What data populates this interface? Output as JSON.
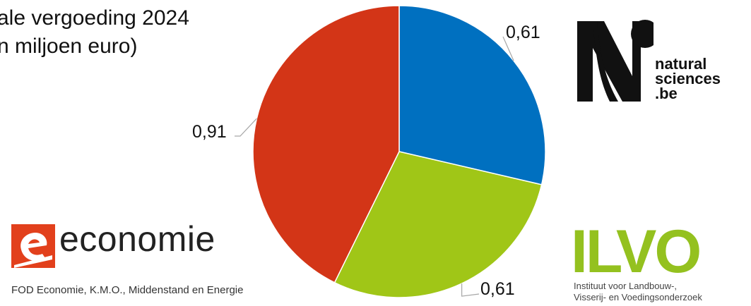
{
  "title_line1": "ale vergoeding 2024",
  "title_line2": "n miljoen euro)",
  "chart_data": {
    "type": "pie",
    "values": [
      0.61,
      0.61,
      0.91
    ],
    "labels": [
      "0,61",
      "0,61",
      "0,91"
    ],
    "colors": [
      "#0070C0",
      "#A0C617",
      "#D33517"
    ],
    "start": "top, clockwise"
  },
  "logos": {
    "naturalsciences": {
      "line1": "natural",
      "line2": "sciences",
      "line3": ".be"
    },
    "economie": {
      "word": "economie",
      "subtitle": "FOD Economie, K.M.O., Middenstand en Energie",
      "color": "#E2401C"
    },
    "ilvo": {
      "word": "ILVO",
      "line1": "Instituut voor Landbouw-,",
      "line2": "Visserij- en Voedingsonderzoek",
      "color": "#94C11F"
    }
  }
}
